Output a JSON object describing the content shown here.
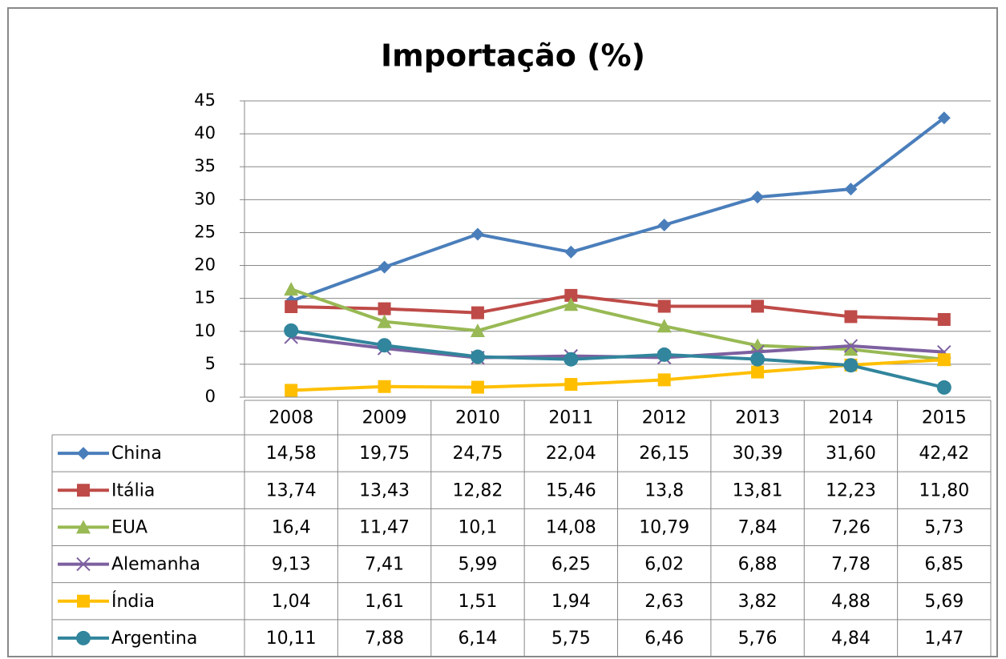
{
  "chart_data": {
    "type": "line",
    "title": "Importação (%)",
    "categories": [
      "2008",
      "2009",
      "2010",
      "2011",
      "2012",
      "2013",
      "2014",
      "2015"
    ],
    "ylim": [
      0,
      45
    ],
    "yticks": [
      0,
      5,
      10,
      15,
      20,
      25,
      30,
      35,
      40,
      45
    ],
    "grid": true,
    "series": [
      {
        "name": "China",
        "color": "#4a7ebb",
        "marker": "diamond",
        "values": [
          14.58,
          19.75,
          24.75,
          22.04,
          26.15,
          30.39,
          31.6,
          42.42
        ],
        "value_labels": [
          "14,58",
          "19,75",
          "24,75",
          "22,04",
          "26,15",
          "30,39",
          "31,60",
          "42,42"
        ]
      },
      {
        "name": "Itália",
        "color": "#be4b48",
        "marker": "square",
        "values": [
          13.74,
          13.43,
          12.82,
          15.46,
          13.8,
          13.81,
          12.23,
          11.8
        ],
        "value_labels": [
          "13,74",
          "13,43",
          "12,82",
          "15,46",
          "13,8",
          "13,81",
          "12,23",
          "11,80"
        ]
      },
      {
        "name": "EUA",
        "color": "#98b954",
        "marker": "triangle",
        "values": [
          16.4,
          11.47,
          10.1,
          14.08,
          10.79,
          7.84,
          7.26,
          5.73
        ],
        "value_labels": [
          "16,4",
          "11,47",
          "10,1",
          "14,08",
          "10,79",
          "7,84",
          "7,26",
          "5,73"
        ]
      },
      {
        "name": "Alemanha",
        "color": "#7d60a0",
        "marker": "x",
        "values": [
          9.13,
          7.41,
          5.99,
          6.25,
          6.02,
          6.88,
          7.78,
          6.85
        ],
        "value_labels": [
          "9,13",
          "7,41",
          "5,99",
          "6,25",
          "6,02",
          "6,88",
          "7,78",
          "6,85"
        ]
      },
      {
        "name": "Índia",
        "color": "#ffbf00",
        "marker": "square",
        "values": [
          1.04,
          1.61,
          1.51,
          1.94,
          2.63,
          3.82,
          4.88,
          5.69
        ],
        "value_labels": [
          "1,04",
          "1,61",
          "1,51",
          "1,94",
          "2,63",
          "3,82",
          "4,88",
          "5,69"
        ]
      },
      {
        "name": "Argentina",
        "color": "#31859c",
        "marker": "circle",
        "values": [
          10.11,
          7.88,
          6.14,
          5.75,
          6.46,
          5.76,
          4.84,
          1.47
        ],
        "value_labels": [
          "10,11",
          "7,88",
          "6,14",
          "5,75",
          "6,46",
          "5,76",
          "4,84",
          "1,47"
        ]
      }
    ]
  }
}
